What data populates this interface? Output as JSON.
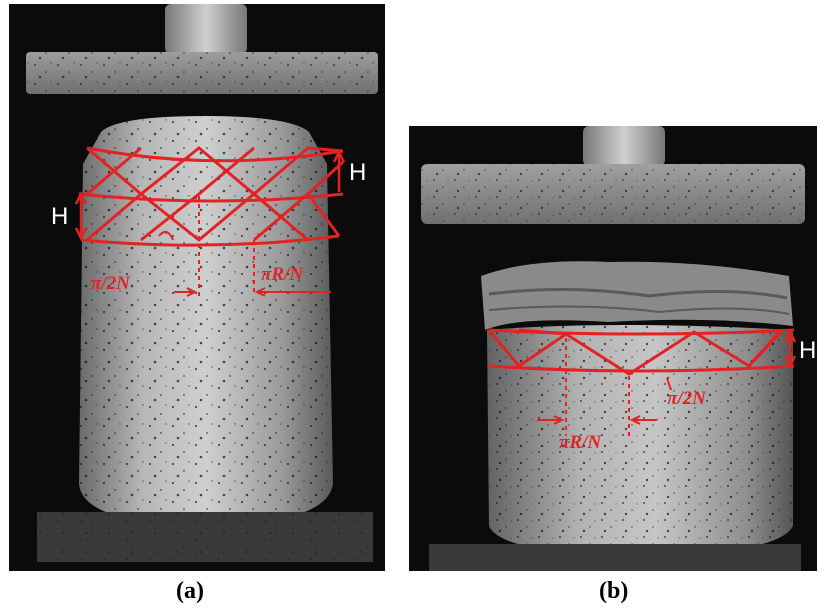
{
  "figure": {
    "panels": [
      {
        "id": "a",
        "caption": "(a)",
        "labels": {
          "height_right": "H",
          "height_left": "H",
          "angle": "π/2N",
          "arc_length": "πR/N"
        }
      },
      {
        "id": "b",
        "caption": "(b)",
        "labels": {
          "height_right": "H",
          "angle": "π/2N",
          "arc_length": "πR/N"
        }
      }
    ],
    "colors": {
      "overlay": "#e32224",
      "background": "#000000",
      "label_text": "#ffffff"
    }
  }
}
